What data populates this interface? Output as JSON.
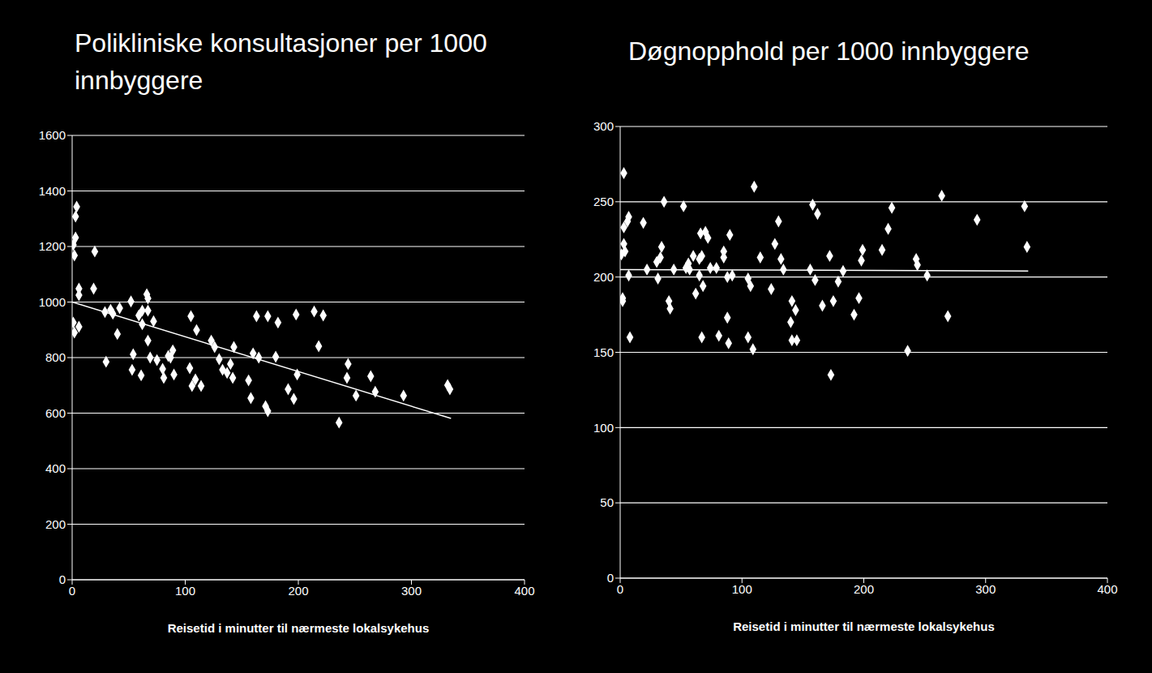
{
  "chart_data": [
    {
      "type": "scatter",
      "title": "Polikliniske konsultasjoner per 1000 innbyggere",
      "x_label": "Reisetid i minutter til nærmeste lokalsykehus",
      "x": [
        4,
        3,
        3,
        1,
        2,
        20,
        6,
        6,
        19,
        1,
        6,
        2,
        29,
        34,
        36,
        42,
        40,
        52,
        30,
        54,
        53,
        61,
        59,
        62,
        66,
        67,
        67,
        62,
        72,
        67,
        69,
        75,
        80,
        81,
        85,
        89,
        87,
        90,
        105,
        110,
        104,
        106,
        109,
        114,
        123,
        126,
        130,
        133,
        137,
        143,
        142,
        140,
        156,
        158,
        160,
        165,
        163,
        173,
        171,
        173,
        180,
        182,
        191,
        196,
        198,
        199,
        214,
        222,
        218,
        244,
        243,
        251,
        236,
        264,
        268,
        293,
        332,
        334
      ],
      "values": [
        1343,
        1308,
        1232,
        1206,
        1168,
        1182,
        1048,
        1025,
        1048,
        926,
        911,
        890,
        964,
        972,
        958,
        978,
        885,
        1002,
        785,
        812,
        756,
        736,
        952,
        969,
        1028,
        1013,
        969,
        920,
        931,
        861,
        800,
        791,
        759,
        727,
        806,
        826,
        800,
        739,
        949,
        899,
        762,
        698,
        721,
        698,
        861,
        838,
        794,
        756,
        745,
        838,
        727,
        777,
        718,
        654,
        815,
        800,
        949,
        949,
        625,
        607,
        803,
        926,
        686,
        651,
        955,
        739,
        966,
        952,
        841,
        777,
        727,
        663,
        566,
        733,
        677,
        663,
        701,
        686
      ],
      "trend": {
        "x": [
          0,
          335
        ],
        "values": [
          1000,
          581
        ]
      },
      "color": "#ffffff",
      "marker": "diamond",
      "xlim": [
        0,
        400
      ],
      "xticks": [
        0,
        100,
        200,
        300,
        400
      ],
      "ylim": [
        0,
        1600
      ],
      "yticks": [
        0,
        200,
        400,
        600,
        800,
        1000,
        1200,
        1400,
        1600
      ],
      "grid": true
    },
    {
      "type": "scatter",
      "title": "Døgnopphold per 1000 innbyggere",
      "x_label": "Reisetid  i minutter til nærmeste lokalsykehus",
      "x": [
        3,
        3,
        3,
        4,
        1,
        2,
        2,
        7,
        6,
        7,
        8,
        19,
        22,
        30,
        31,
        33,
        34,
        36,
        40,
        41,
        44,
        52,
        54,
        56,
        57,
        60,
        62,
        65,
        65,
        66,
        67,
        68,
        67,
        70,
        72,
        74,
        79,
        81,
        85,
        85,
        88,
        90,
        88,
        89,
        92,
        105,
        105,
        107,
        109,
        110,
        115,
        124,
        127,
        130,
        132,
        134,
        140,
        141,
        141,
        145,
        144,
        156,
        158,
        162,
        160,
        166,
        172,
        175,
        173,
        179,
        183,
        192,
        196,
        198,
        199,
        215,
        220,
        223,
        236,
        243,
        244,
        252,
        264,
        269,
        293,
        332,
        334
      ],
      "values": [
        269,
        233,
        222,
        217,
        215,
        186,
        184,
        240,
        237,
        201,
        160,
        236,
        205,
        210,
        199,
        213,
        220,
        250,
        184,
        179,
        205,
        247,
        206,
        209,
        205,
        214,
        189,
        201,
        212,
        229,
        214,
        194,
        160,
        230,
        226,
        206,
        206,
        161,
        217,
        213,
        200,
        228,
        173,
        156,
        201,
        199,
        160,
        194,
        152,
        260,
        213,
        192,
        222,
        237,
        212,
        205,
        170,
        184,
        158,
        158,
        178,
        205,
        248,
        242,
        198,
        181,
        214,
        184,
        135,
        197,
        204,
        175,
        186,
        211,
        218,
        218,
        232,
        246,
        151,
        212,
        208,
        201,
        254,
        174,
        238,
        247,
        220
      ],
      "trend": {
        "x": [
          0,
          335
        ],
        "values": [
          205,
          204
        ]
      },
      "color": "#ffffff",
      "marker": "diamond",
      "xlim": [
        0,
        400
      ],
      "xticks": [
        0,
        100,
        200,
        300,
        400
      ],
      "ylim": [
        0,
        300
      ],
      "yticks": [
        0,
        50,
        100,
        150,
        200,
        250,
        300
      ],
      "grid": true
    }
  ]
}
